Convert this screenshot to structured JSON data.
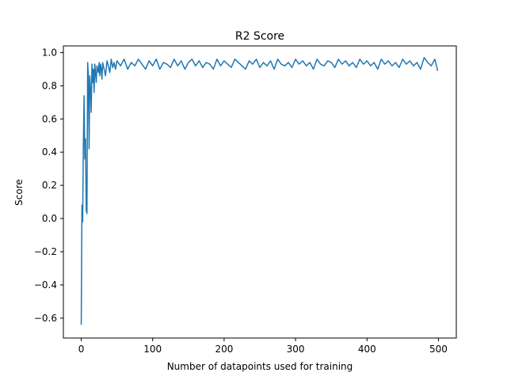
{
  "chart_data": {
    "type": "line",
    "title": "R2 Score",
    "xlabel": "Number of datapoints used for training",
    "ylabel": "Score",
    "xlim": [
      -25,
      525
    ],
    "ylim": [
      -0.72,
      1.04
    ],
    "x_ticks": [
      0,
      100,
      200,
      300,
      400,
      500
    ],
    "y_ticks": [
      -0.6,
      -0.4,
      -0.2,
      0.0,
      0.2,
      0.4,
      0.6,
      0.8,
      1.0
    ],
    "x_tick_labels": [
      "0",
      "100",
      "200",
      "300",
      "400",
      "500"
    ],
    "y_tick_labels": [
      "−0.6",
      "−0.4",
      "−0.2",
      "0.0",
      "0.2",
      "0.4",
      "0.6",
      "0.8",
      "1.0"
    ],
    "grid": false,
    "line_color": "#1f77b4",
    "series": [
      {
        "x": [
          0,
          1,
          2,
          3,
          4,
          5,
          6,
          7,
          8,
          9,
          10,
          11,
          12,
          13,
          14,
          15,
          16,
          17,
          18,
          19,
          20,
          21,
          22,
          23,
          24,
          25,
          26,
          27,
          28,
          29,
          30,
          32,
          34,
          36,
          38,
          40,
          42,
          44,
          46,
          48,
          50,
          55,
          60,
          65,
          70,
          75,
          80,
          85,
          90,
          95,
          100,
          105,
          110,
          115,
          120,
          125,
          130,
          135,
          140,
          145,
          150,
          155,
          160,
          165,
          170,
          175,
          180,
          185,
          190,
          195,
          200,
          205,
          210,
          215,
          220,
          225,
          230,
          235,
          240,
          245,
          250,
          255,
          260,
          265,
          270,
          275,
          280,
          285,
          290,
          295,
          300,
          305,
          310,
          315,
          320,
          325,
          330,
          335,
          340,
          345,
          350,
          355,
          360,
          365,
          370,
          375,
          380,
          385,
          390,
          395,
          400,
          405,
          410,
          415,
          420,
          425,
          430,
          435,
          440,
          445,
          450,
          455,
          460,
          465,
          470,
          475,
          480,
          485,
          490,
          495,
          499
        ],
        "y": [
          -0.64,
          0.08,
          -0.02,
          0.46,
          0.74,
          0.36,
          0.48,
          0.05,
          0.03,
          0.94,
          0.86,
          0.42,
          0.86,
          0.78,
          0.64,
          0.93,
          0.82,
          0.9,
          0.76,
          0.93,
          0.88,
          0.82,
          0.92,
          0.9,
          0.88,
          0.94,
          0.86,
          0.93,
          0.9,
          0.84,
          0.94,
          0.9,
          0.86,
          0.95,
          0.92,
          0.88,
          0.96,
          0.91,
          0.94,
          0.9,
          0.95,
          0.92,
          0.96,
          0.9,
          0.94,
          0.92,
          0.96,
          0.93,
          0.9,
          0.95,
          0.92,
          0.96,
          0.9,
          0.94,
          0.93,
          0.91,
          0.96,
          0.92,
          0.95,
          0.9,
          0.94,
          0.96,
          0.92,
          0.95,
          0.91,
          0.94,
          0.93,
          0.9,
          0.96,
          0.92,
          0.95,
          0.93,
          0.91,
          0.96,
          0.94,
          0.92,
          0.9,
          0.95,
          0.93,
          0.96,
          0.91,
          0.94,
          0.92,
          0.95,
          0.9,
          0.96,
          0.93,
          0.92,
          0.94,
          0.91,
          0.96,
          0.93,
          0.95,
          0.92,
          0.94,
          0.9,
          0.96,
          0.93,
          0.92,
          0.95,
          0.94,
          0.91,
          0.96,
          0.93,
          0.95,
          0.92,
          0.94,
          0.91,
          0.96,
          0.93,
          0.95,
          0.92,
          0.94,
          0.9,
          0.96,
          0.93,
          0.95,
          0.92,
          0.94,
          0.91,
          0.96,
          0.93,
          0.95,
          0.92,
          0.94,
          0.9,
          0.97,
          0.94,
          0.92,
          0.96,
          0.89
        ]
      }
    ]
  }
}
